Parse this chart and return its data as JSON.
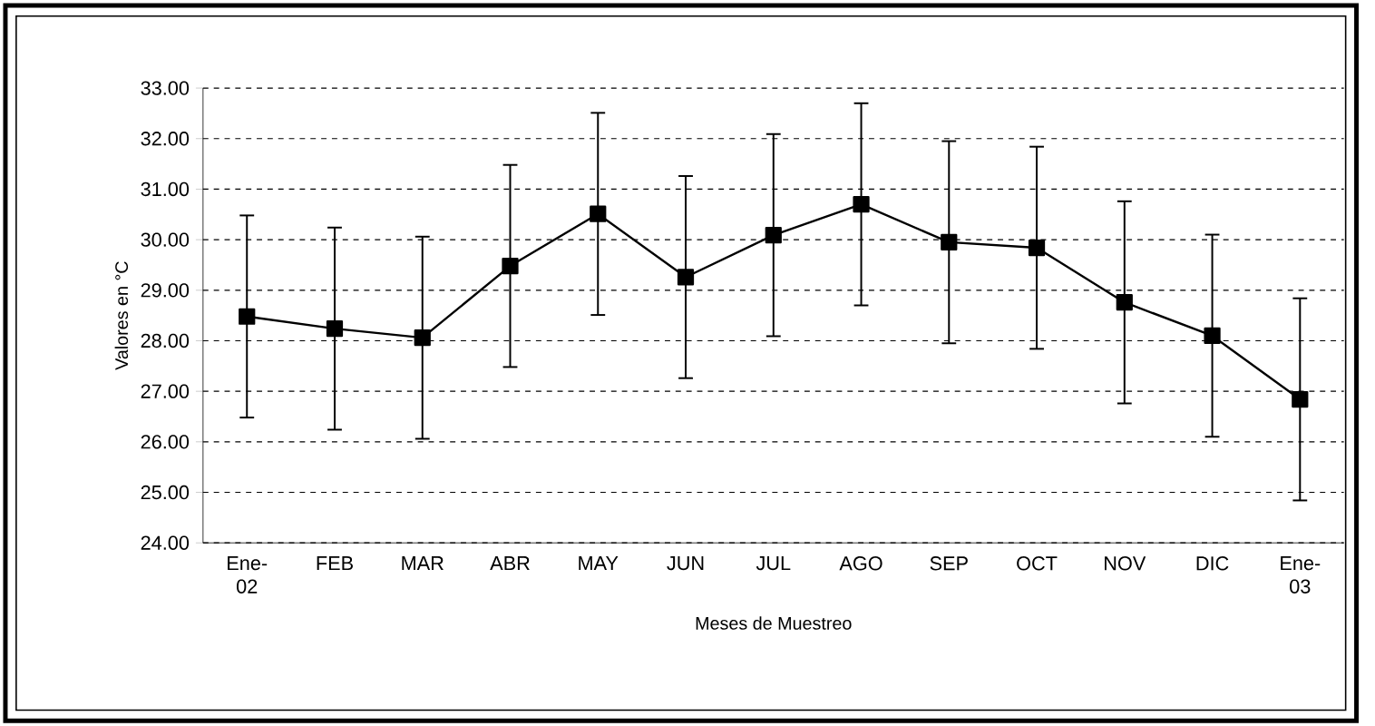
{
  "chart_data": {
    "type": "line",
    "xlabel": "Meses de Muestreo",
    "ylabel": "Valores en °C",
    "categories": [
      "Ene-02",
      "FEB",
      "MAR",
      "ABR",
      "MAY",
      "JUN",
      "JUL",
      "AGO",
      "SEP",
      "OCT",
      "NOV",
      "DIC",
      "Ene-03"
    ],
    "values": [
      28.48,
      28.24,
      28.06,
      29.48,
      30.51,
      29.26,
      30.09,
      30.7,
      29.95,
      29.84,
      28.76,
      28.1,
      26.84
    ],
    "errors": [
      2,
      2,
      2,
      2,
      2,
      2,
      2,
      2,
      2,
      2,
      2,
      2,
      2
    ],
    "color": "#000000",
    "marker": "square",
    "line_style": "solid",
    "ylim": [
      24,
      33
    ],
    "yticks": [
      {
        "value": 24,
        "label": "24.00"
      },
      {
        "value": 25,
        "label": "25.00"
      },
      {
        "value": 26,
        "label": "26.00"
      },
      {
        "value": 27,
        "label": "27.00"
      },
      {
        "value": 28,
        "label": "28.00"
      },
      {
        "value": 29,
        "label": "29.00"
      },
      {
        "value": 30,
        "label": "30.00"
      },
      {
        "value": 31,
        "label": "31.00"
      },
      {
        "value": 32,
        "label": "32.00"
      },
      {
        "value": 33,
        "label": "33.00"
      }
    ],
    "grid": "y"
  }
}
